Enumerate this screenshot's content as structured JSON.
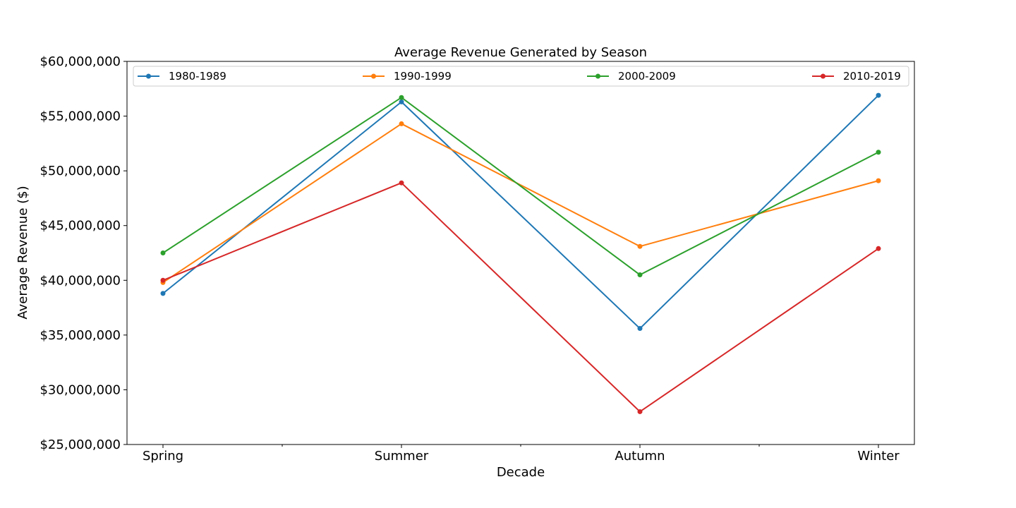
{
  "chart_data": {
    "type": "line",
    "title": "Average Revenue Generated by Season",
    "xlabel": "Decade",
    "ylabel": "Average Revenue ($)",
    "categories": [
      "Spring",
      "Summer",
      "Autumn",
      "Winter"
    ],
    "ylim": [
      25000000,
      60000000
    ],
    "yticks": [
      25000000,
      30000000,
      35000000,
      40000000,
      45000000,
      50000000,
      55000000,
      60000000
    ],
    "ytick_labels": [
      "$25,000,000",
      "$30,000,000",
      "$35,000,000",
      "$40,000,000",
      "$45,000,000",
      "$50,000,000",
      "$55,000,000",
      "$60,000,000"
    ],
    "grid": false,
    "legend_position": "top",
    "series": [
      {
        "name": "1980-1989",
        "color": "#1f77b4",
        "values": [
          38800000,
          56300000,
          35600000,
          56900000
        ]
      },
      {
        "name": "1990-1999",
        "color": "#ff7f0e",
        "values": [
          39800000,
          54300000,
          43100000,
          49100000
        ]
      },
      {
        "name": "2000-2009",
        "color": "#2ca02c",
        "values": [
          42500000,
          56700000,
          40500000,
          51700000
        ]
      },
      {
        "name": "2010-2019",
        "color": "#d62728",
        "values": [
          40000000,
          48900000,
          28000000,
          42900000
        ]
      }
    ]
  }
}
